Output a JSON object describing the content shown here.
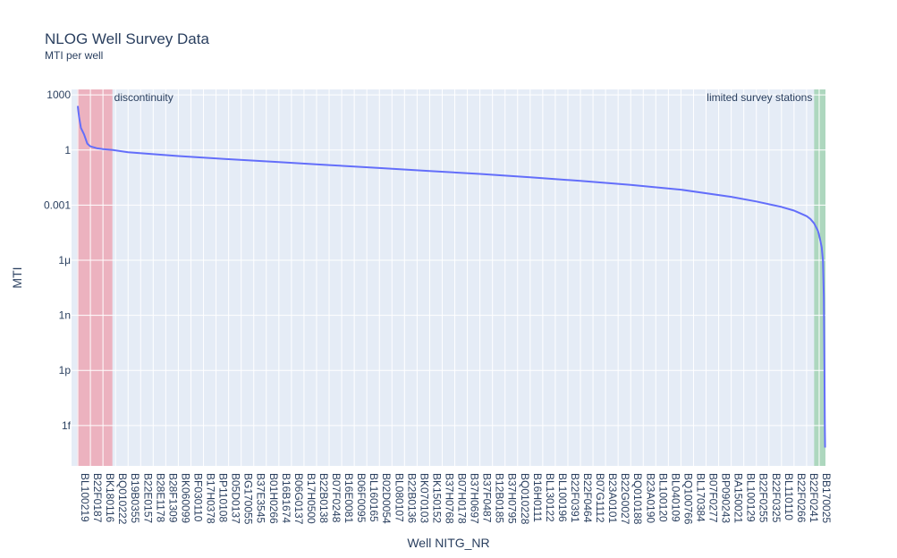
{
  "chart_data": {
    "type": "line",
    "title": "NLOG Well Survey Data",
    "subtitle": "MTI per well",
    "xlabel": "Well NITG_NR",
    "ylabel": "MTI",
    "yscale": "log",
    "ylim_exp": [
      -17.2,
      3.3
    ],
    "y_ticks": [
      {
        "exp": 3,
        "label": "1000"
      },
      {
        "exp": 0,
        "label": "1"
      },
      {
        "exp": -3,
        "label": "0.001"
      },
      {
        "exp": -6,
        "label": "1μ"
      },
      {
        "exp": -9,
        "label": "1n"
      },
      {
        "exp": -12,
        "label": "1p"
      },
      {
        "exp": -15,
        "label": "1f"
      }
    ],
    "categories": [
      "BL100219",
      "B22F0187",
      "BK180116",
      "BQ010222",
      "B19B0355",
      "B22E0157",
      "B28E1178",
      "B28F1309",
      "BK060099",
      "BF030110",
      "B17H0378",
      "BP110108",
      "B05D0137",
      "BG170055",
      "B37E3545",
      "B01H0266",
      "B16B1674",
      "B06G0137",
      "B17H0500",
      "B22B0138",
      "B07F0248",
      "B16E0081",
      "B06F0095",
      "BL160165",
      "B02D0054",
      "BL080107",
      "B22B0136",
      "BK070103",
      "BK150152",
      "B37H0768",
      "B07H0178",
      "B37H0697",
      "B37F0487",
      "B12B0185",
      "B37H0795",
      "BQ010228",
      "B16H0111",
      "BL130122",
      "BL100196",
      "B22F0391",
      "B22F0464",
      "B07G1112",
      "B23A0101",
      "B22G0027",
      "BQ010188",
      "B23A0190",
      "BL100120",
      "BL040109",
      "BQ100766",
      "BL170384",
      "B07F0277",
      "BP090243",
      "BA150021",
      "BL100129",
      "B22F0255",
      "B22F0325",
      "BL110110",
      "B22F0266",
      "B22F0241",
      "BB170025"
    ],
    "series": [
      {
        "color": "#636efa",
        "points": [
          [
            0,
            2.4
          ],
          [
            0.1,
            1.8
          ],
          [
            0.25,
            1.2
          ],
          [
            0.5,
            0.85
          ],
          [
            0.75,
            0.35
          ],
          [
            1.0,
            0.2
          ],
          [
            1.5,
            0.1
          ],
          [
            2.0,
            0.05
          ],
          [
            2.5,
            0.02
          ],
          [
            2.8,
            0.0
          ],
          [
            4,
            -0.12
          ],
          [
            8,
            -0.33
          ],
          [
            12,
            -0.5
          ],
          [
            16,
            -0.66
          ],
          [
            20,
            -0.82
          ],
          [
            24,
            -0.98
          ],
          [
            28,
            -1.14
          ],
          [
            32,
            -1.3
          ],
          [
            36,
            -1.48
          ],
          [
            40,
            -1.68
          ],
          [
            44,
            -1.9
          ],
          [
            48,
            -2.16
          ],
          [
            52,
            -2.55
          ],
          [
            54,
            -2.8
          ],
          [
            56,
            -3.1
          ],
          [
            57,
            -3.3
          ],
          [
            57.5,
            -3.45
          ],
          [
            58,
            -3.6
          ],
          [
            58.3,
            -3.75
          ],
          [
            58.6,
            -4.0
          ],
          [
            58.9,
            -4.4
          ],
          [
            59.05,
            -4.8
          ],
          [
            59.2,
            -5.3
          ],
          [
            59.3,
            -6.0
          ],
          [
            59.37,
            -8.0
          ],
          [
            59.42,
            -12.0
          ],
          [
            59.45,
            -15.0
          ],
          [
            59.47,
            -16.2
          ]
        ]
      }
    ],
    "bands": [
      {
        "x0": -0.05,
        "x1": 2.75,
        "color": "#ef9aa8",
        "label": "discontinuity",
        "label_pos": "top-left"
      },
      {
        "x0": 58.6,
        "x1": 60.05,
        "color": "#95cfa6",
        "label": "limited survey stations",
        "label_pos": "top-right"
      }
    ],
    "grid": true,
    "legend": "none"
  }
}
